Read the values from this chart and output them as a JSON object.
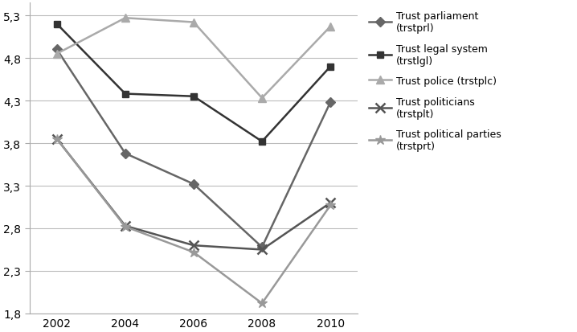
{
  "years": [
    2002,
    2004,
    2006,
    2008,
    2010
  ],
  "series": [
    {
      "label": "Trust parliament\n(trstprl)",
      "values": [
        4.9,
        3.68,
        3.32,
        2.58,
        4.28
      ],
      "color": "#666666",
      "marker": "D",
      "markersize": 6,
      "linewidth": 1.8,
      "markeredgewidth": 1.0
    },
    {
      "label": "Trust legal system\n(trstlgl)",
      "values": [
        5.2,
        4.38,
        4.35,
        3.82,
        4.7
      ],
      "color": "#333333",
      "marker": "s",
      "markersize": 6,
      "linewidth": 1.8,
      "markeredgewidth": 1.0
    },
    {
      "label": "Trust police (trstplc)",
      "values": [
        4.85,
        5.27,
        5.22,
        4.33,
        5.17
      ],
      "color": "#aaaaaa",
      "marker": "^",
      "markersize": 7,
      "linewidth": 1.8,
      "markeredgewidth": 1.0
    },
    {
      "label": "Trust politicians\n(trstplt)",
      "values": [
        3.85,
        2.83,
        2.6,
        2.55,
        3.1
      ],
      "color": "#555555",
      "marker": "x",
      "markersize": 8,
      "linewidth": 1.8,
      "markeredgewidth": 1.8
    },
    {
      "label": "Trust political parties\n(trstprt)",
      "values": [
        3.85,
        2.82,
        2.52,
        1.92,
        3.07
      ],
      "color": "#999999",
      "marker": "*",
      "markersize": 9,
      "linewidth": 1.8,
      "markeredgewidth": 1.0
    }
  ],
  "ylim": [
    1.8,
    5.45
  ],
  "yticks": [
    1.8,
    2.3,
    2.8,
    3.3,
    3.8,
    4.3,
    4.8,
    5.3
  ],
  "ytick_labels": [
    "1,8",
    "2,3",
    "2,8",
    "3,3",
    "3,8",
    "4,3",
    "4,8",
    "5,3"
  ],
  "xticks": [
    2002,
    2004,
    2006,
    2008,
    2010
  ],
  "xlim": [
    2001.2,
    2010.8
  ],
  "background_color": "#ffffff",
  "grid_color": "#bbbbbb",
  "fontsize_legend": 9,
  "fontsize_ticks": 10,
  "spine_color": "#aaaaaa"
}
